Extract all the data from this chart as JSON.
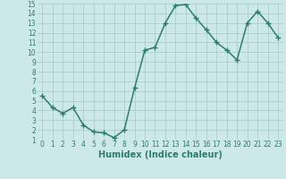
{
  "x": [
    0,
    1,
    2,
    3,
    4,
    5,
    6,
    7,
    8,
    9,
    10,
    11,
    12,
    13,
    14,
    15,
    16,
    17,
    18,
    19,
    20,
    21,
    22,
    23
  ],
  "y": [
    5.5,
    4.3,
    3.7,
    4.3,
    2.5,
    1.8,
    1.7,
    1.2,
    2.0,
    6.3,
    10.2,
    10.5,
    13.0,
    14.8,
    14.9,
    13.5,
    12.3,
    11.0,
    10.2,
    9.2,
    13.0,
    14.2,
    13.0,
    11.5
  ],
  "line_color": "#2d7d6e",
  "marker": "+",
  "marker_size": 4,
  "bg_color": "#cce8e8",
  "grid_color": "#a8c8c8",
  "xlabel": "Humidex (Indice chaleur)",
  "xlim": [
    -0.5,
    23.5
  ],
  "ylim": [
    1,
    15
  ],
  "yticks": [
    1,
    2,
    3,
    4,
    5,
    6,
    7,
    8,
    9,
    10,
    11,
    12,
    13,
    14,
    15
  ],
  "xticks": [
    0,
    1,
    2,
    3,
    4,
    5,
    6,
    7,
    8,
    9,
    10,
    11,
    12,
    13,
    14,
    15,
    16,
    17,
    18,
    19,
    20,
    21,
    22,
    23
  ],
  "tick_fontsize": 5.5,
  "xlabel_fontsize": 7,
  "linewidth": 1.1,
  "tick_color": "#2d7d6e"
}
